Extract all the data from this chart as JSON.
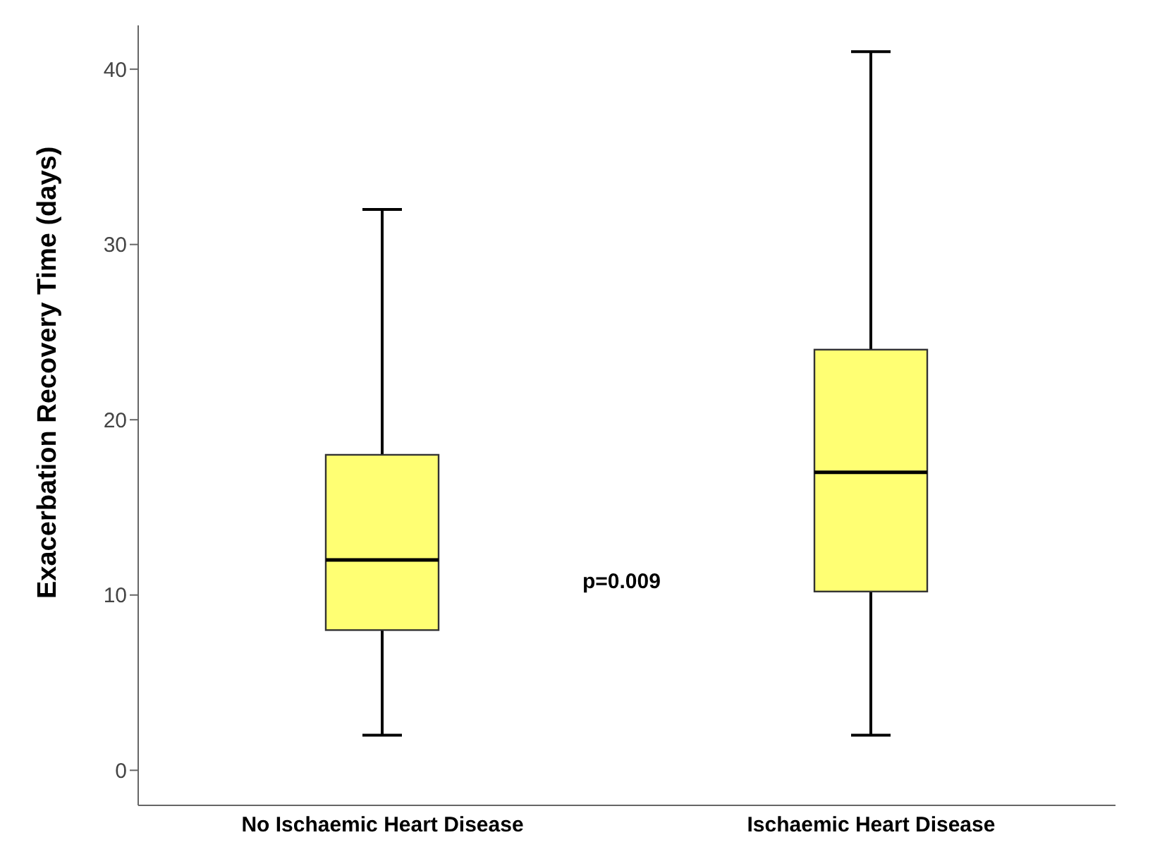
{
  "chart_data": {
    "type": "box",
    "ylabel": "Exacerbation Recovery Time (days)",
    "categories": [
      "No Ischaemic Heart Disease",
      "Ischaemic Heart Disease"
    ],
    "boxes": [
      {
        "low": 2,
        "q1": 8,
        "median": 12,
        "q3": 18,
        "high": 32
      },
      {
        "low": 2,
        "q1": 10.2,
        "median": 17,
        "q3": 24,
        "high": 41
      }
    ],
    "color": "#ffff73",
    "ylim": [
      -2,
      42.5
    ],
    "yticks": [
      0,
      10,
      20,
      30,
      40
    ],
    "grid": false,
    "annotations": [
      "p=0.009"
    ]
  }
}
